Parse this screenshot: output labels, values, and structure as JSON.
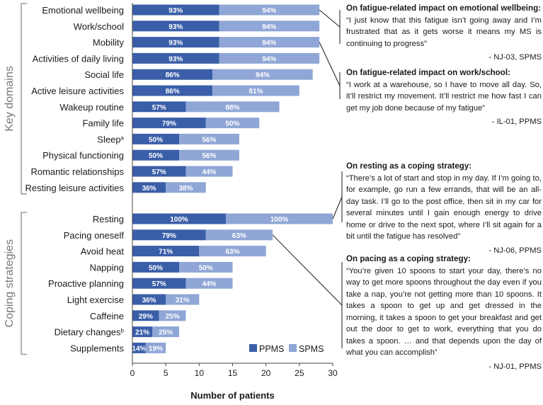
{
  "chart_data": {
    "type": "bar",
    "orientation": "horizontal",
    "stacked": true,
    "xlabel": "Number of patients",
    "xlim": [
      0,
      30
    ],
    "xticks": [
      0,
      5,
      10,
      15,
      20,
      25,
      30
    ],
    "series_names": [
      "PPMS",
      "SPMS"
    ],
    "colors": {
      "PPMS": "#3a5ea8",
      "SPMS": "#8fa6d6"
    },
    "legend": {
      "position": "bottom-right",
      "entries": [
        "PPMS",
        "SPMS"
      ]
    },
    "groups": [
      {
        "name": "Key domains",
        "categories": [
          {
            "label": "Emotional wellbeing",
            "sup": "",
            "PPMS": 13,
            "SPMS": 15,
            "PPMS_pct": "93%",
            "SPMS_pct": "94%"
          },
          {
            "label": "Work/school",
            "sup": "",
            "PPMS": 13,
            "SPMS": 15,
            "PPMS_pct": "93%",
            "SPMS_pct": "94%"
          },
          {
            "label": "Mobility",
            "sup": "",
            "PPMS": 13,
            "SPMS": 15,
            "PPMS_pct": "93%",
            "SPMS_pct": "94%"
          },
          {
            "label": "Activities of daily living",
            "sup": "",
            "PPMS": 13,
            "SPMS": 15,
            "PPMS_pct": "93%",
            "SPMS_pct": "94%"
          },
          {
            "label": "Social life",
            "sup": "",
            "PPMS": 12,
            "SPMS": 15,
            "PPMS_pct": "86%",
            "SPMS_pct": "94%"
          },
          {
            "label": "Active leisure activities",
            "sup": "",
            "PPMS": 12,
            "SPMS": 13,
            "PPMS_pct": "86%",
            "SPMS_pct": "81%"
          },
          {
            "label": "Wakeup routine",
            "sup": "",
            "PPMS": 8,
            "SPMS": 14,
            "PPMS_pct": "57%",
            "SPMS_pct": "88%"
          },
          {
            "label": "Family life",
            "sup": "",
            "PPMS": 11,
            "SPMS": 8,
            "PPMS_pct": "79%",
            "SPMS_pct": "50%"
          },
          {
            "label": "Sleep",
            "sup": "a",
            "PPMS": 7,
            "SPMS": 9,
            "PPMS_pct": "50%",
            "SPMS_pct": "56%"
          },
          {
            "label": "Physical functioning",
            "sup": "",
            "PPMS": 7,
            "SPMS": 9,
            "PPMS_pct": "50%",
            "SPMS_pct": "56%"
          },
          {
            "label": "Romantic relationships",
            "sup": "",
            "PPMS": 8,
            "SPMS": 7,
            "PPMS_pct": "57%",
            "SPMS_pct": "44%"
          },
          {
            "label": "Resting leisure activities",
            "sup": "",
            "PPMS": 5,
            "SPMS": 6,
            "PPMS_pct": "36%",
            "SPMS_pct": "38%"
          }
        ]
      },
      {
        "name": "Coping strategies",
        "categories": [
          {
            "label": "Resting",
            "sup": "",
            "PPMS": 14,
            "SPMS": 16,
            "PPMS_pct": "100%",
            "SPMS_pct": "100%"
          },
          {
            "label": "Pacing oneself",
            "sup": "",
            "PPMS": 11,
            "SPMS": 10,
            "PPMS_pct": "79%",
            "SPMS_pct": "63%"
          },
          {
            "label": "Avoid heat",
            "sup": "",
            "PPMS": 10,
            "SPMS": 10,
            "PPMS_pct": "71%",
            "SPMS_pct": "63%"
          },
          {
            "label": "Napping",
            "sup": "",
            "PPMS": 7,
            "SPMS": 8,
            "PPMS_pct": "50%",
            "SPMS_pct": "50%"
          },
          {
            "label": "Proactive planning",
            "sup": "",
            "PPMS": 8,
            "SPMS": 7,
            "PPMS_pct": "57%",
            "SPMS_pct": "44%"
          },
          {
            "label": "Light exercise",
            "sup": "",
            "PPMS": 5,
            "SPMS": 5,
            "PPMS_pct": "36%",
            "SPMS_pct": "31%"
          },
          {
            "label": "Caffeine",
            "sup": "",
            "PPMS": 4,
            "SPMS": 4,
            "PPMS_pct": "29%",
            "SPMS_pct": "25%"
          },
          {
            "label": "Dietary changes",
            "sup": "b",
            "PPMS": 3,
            "SPMS": 4,
            "PPMS_pct": "21%",
            "SPMS_pct": "25%"
          },
          {
            "label": "Supplements",
            "sup": "",
            "PPMS": 2,
            "SPMS": 3,
            "PPMS_pct": "14%",
            "SPMS_pct": "19%"
          }
        ]
      }
    ]
  },
  "quotes": [
    {
      "title": "On fatigue-related impact on emotional wellbeing:",
      "text": "“I just know that this fatigue isn’t going away and I’m frustrated that as it gets worse it means my MS is continuing to progress”",
      "source": "- NJ-03, SPMS"
    },
    {
      "title": "On fatigue-related impact on work/school:",
      "text": "“I work at a warehouse, so I have to move all day. So, it’ll restrict my movement. It’ll restrict me how fast I can get my job done because of my fatigue”",
      "source": "- IL-01, PPMS"
    },
    {
      "title": "On resting as a coping strategy:",
      "text": "“There’s a lot of start and stop in my day. If I’m going to, for example, go run a few errands, that will be an all-day task. I’ll go to the post office, then sit in my car for several minutes until I gain enough energy to drive home or drive to the next spot, where I’ll sit again for a bit until the fatigue has resolved”",
      "source": "- NJ-06, PPMS"
    },
    {
      "title": "On pacing as a coping strategy:",
      "text": "“You’re given 10 spoons to start your day, there’s no way to get more spoons throughout the day even if you take a nap, you’re not getting more than 10 spoons.  It takes a spoon to get up and get dressed in the morning, it takes a spoon to get your breakfast and get out the door to get to work, everything that you do takes a spoon.  … and that depends upon the day of what you can accomplish”",
      "source": "- NJ-01, PPMS"
    }
  ]
}
